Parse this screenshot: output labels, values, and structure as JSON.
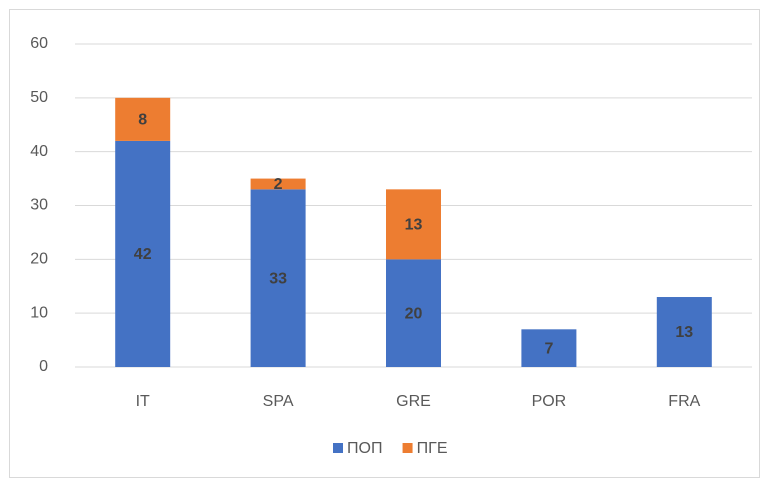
{
  "chart_data": {
    "type": "bar",
    "stacked": true,
    "categories": [
      "IT",
      "SPA",
      "GRE",
      "POR",
      "FRA"
    ],
    "series": [
      {
        "name": "ΠΟΠ",
        "color": "#4472c4",
        "values": [
          42,
          33,
          20,
          7,
          13
        ]
      },
      {
        "name": "ΠΓΕ",
        "color": "#ed7d31",
        "values": [
          8,
          2,
          13,
          null,
          null
        ]
      }
    ],
    "ylim": [
      0,
      60
    ],
    "yticks": [
      0,
      10,
      20,
      30,
      40,
      50,
      60
    ],
    "grid": true,
    "legend": "bottom"
  }
}
